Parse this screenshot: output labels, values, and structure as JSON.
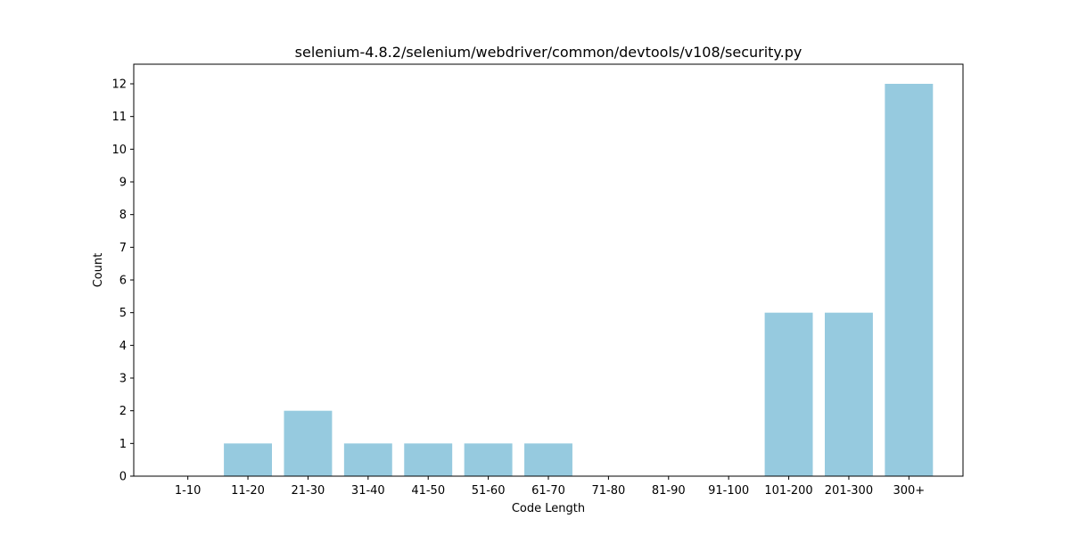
{
  "chart_data": {
    "type": "bar",
    "title": "selenium-4.8.2/selenium/webdriver/common/devtools/v108/security.py",
    "xlabel": "Code Length",
    "ylabel": "Count",
    "categories": [
      "1-10",
      "11-20",
      "21-30",
      "31-40",
      "41-50",
      "51-60",
      "61-70",
      "71-80",
      "81-90",
      "91-100",
      "101-200",
      "201-300",
      "300+"
    ],
    "values": [
      0,
      1,
      2,
      1,
      1,
      1,
      1,
      0,
      0,
      0,
      5,
      5,
      12
    ],
    "ylim": [
      0,
      12.6
    ],
    "yticks": [
      "0",
      "1",
      "2",
      "3",
      "4",
      "5",
      "6",
      "7",
      "8",
      "9",
      "10",
      "11",
      "12"
    ],
    "bar_color": "#96cadf",
    "grid": false,
    "legend": "none"
  }
}
